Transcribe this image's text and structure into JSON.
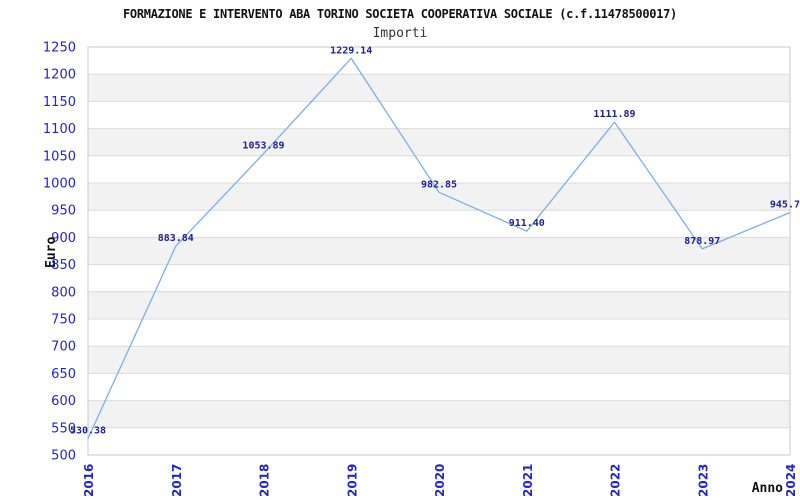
{
  "chart_data": {
    "type": "line",
    "title": "FORMAZIONE E INTERVENTO ABA TORINO SOCIETA COOPERATIVA SOCIALE (c.f.11478500017)",
    "subtitle": "Importi",
    "xlabel": "Anno",
    "ylabel": "Euro",
    "categories": [
      "2016",
      "2017",
      "2018",
      "2019",
      "2020",
      "2021",
      "2022",
      "2023",
      "2024"
    ],
    "values": [
      530.38,
      883.84,
      1053.89,
      1229.14,
      982.85,
      911.4,
      1111.89,
      878.97,
      945.7
    ],
    "point_labels": [
      "530.38",
      "883.84",
      "1053.89",
      "1229.14",
      "982.85",
      "911.40",
      "1111.89",
      "878.97",
      "945.7"
    ],
    "ylim": [
      500,
      1250
    ],
    "ytick_step": 50,
    "grid": true,
    "legend": "none",
    "colors": {
      "line": "#7cb0e6",
      "tick_label": "#2323cc",
      "point_label": "#20208f",
      "band": "#f2f2f2",
      "grid": "#dcdcdc",
      "border": "#c8c8c8"
    }
  }
}
